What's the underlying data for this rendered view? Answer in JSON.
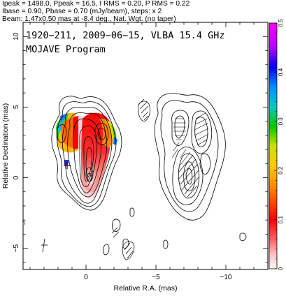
{
  "header": {
    "line1": "Ipeak = 1498.0, Ppeak = 16.5, I RMS = 0.20, P RMS = 0.22",
    "line2": "Ibase = 0.90, Pbase = 0.70 (mJy/beam), steps: x 2",
    "line3": "Beam: 1.47x0.50 mas at -8.4 deg., Nat. Wgt. (no taper)"
  },
  "chart_data": {
    "type": "contour",
    "title": "1920−211, 2009−06−15, VLBA 15.4 GHz",
    "subtitle": "MOJAVE Program",
    "xlabel": "Relative R.A. (mas)",
    "ylabel": "Relative Declination (mas)",
    "xlim": [
      4.5,
      -13.0
    ],
    "ylim": [
      -6.5,
      11.0
    ],
    "x_ticks": [
      0,
      -5,
      -10
    ],
    "x_tick_labels": [
      "0",
      "−5",
      "−10"
    ],
    "y_ticks": [
      -5,
      0,
      5,
      10
    ],
    "y_tick_labels": [
      "−5",
      "0",
      "5",
      "10"
    ],
    "colorbar": {
      "range": [
        0,
        0.5
      ],
      "ticks": [
        0,
        0.1,
        0.2,
        0.3,
        0.4,
        0.5
      ],
      "tick_labels": [
        "0",
        "0.1",
        "0.2",
        "0.3",
        "0.4",
        "0.5"
      ]
    },
    "left_panel": {
      "core_position": [
        0,
        0
      ],
      "contour_levels_mjy": [
        0.9,
        1.8,
        3.6,
        7.2,
        14.4,
        28.8,
        57.6,
        115.2,
        230.4,
        460.8,
        921.6
      ],
      "fractional_polarization_regions": [
        {
          "x": 0.2,
          "y": 2.6,
          "value": 0.08
        },
        {
          "x": 1.0,
          "y": 2.8,
          "value": 0.07
        },
        {
          "x": -1.4,
          "y": 2.6,
          "value": 0.15
        },
        {
          "x": 1.7,
          "y": 2.3,
          "value": 0.3
        }
      ]
    },
    "right_panel": {
      "description_offset_x": -7.0
    }
  }
}
